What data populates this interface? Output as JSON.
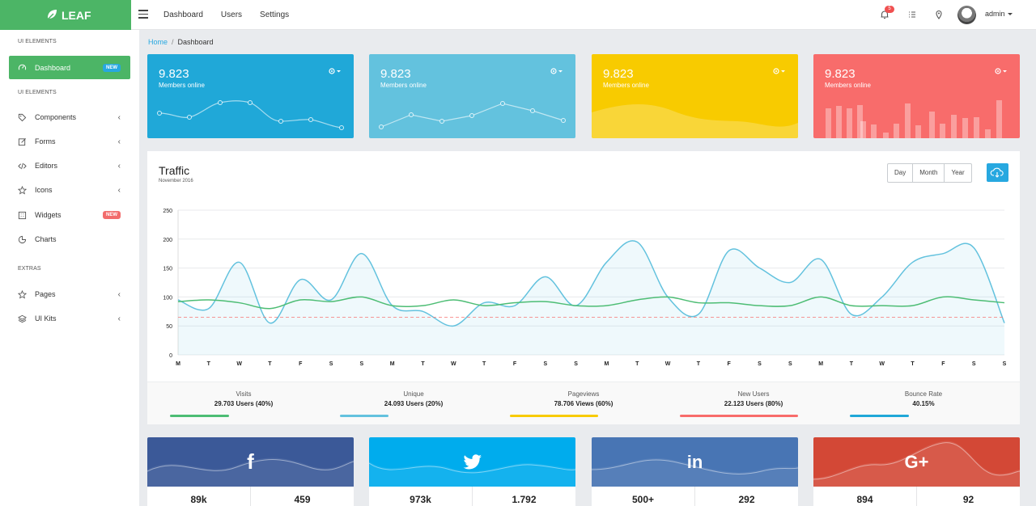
{
  "brand": {
    "name": "LEAF"
  },
  "topnav": {
    "items": [
      "Dashboard",
      "Users",
      "Settings"
    ]
  },
  "header": {
    "notifications_count": "5",
    "user_name": "admin"
  },
  "sidebar": {
    "sections": [
      "UI ELEMENTS",
      "UI ELEMENTS",
      "EXTRAS"
    ],
    "items": [
      {
        "label": "Dashboard",
        "icon": "speedometer-icon",
        "badge": "NEW"
      },
      {
        "label": "Components",
        "icon": "tag-icon"
      },
      {
        "label": "Forms",
        "icon": "edit-icon"
      },
      {
        "label": "Editors",
        "icon": "code-icon"
      },
      {
        "label": "Icons",
        "icon": "star-icon"
      },
      {
        "label": "Widgets",
        "icon": "grid-icon",
        "badge": "NEW"
      },
      {
        "label": "Charts",
        "icon": "pie-icon"
      },
      {
        "label": "Pages",
        "icon": "star-icon"
      },
      {
        "label": "UI Kits",
        "icon": "layers-icon"
      }
    ]
  },
  "breadcrumb": {
    "home": "Home",
    "sep": "/",
    "current": "Dashboard"
  },
  "stat_cards": [
    {
      "value": "9.823",
      "label": "Members online",
      "color": "#20a8d8"
    },
    {
      "value": "9.823",
      "label": "Members online",
      "color": "#63c2de"
    },
    {
      "value": "9.823",
      "label": "Members online",
      "color": "#f8cb00"
    },
    {
      "value": "9.823",
      "label": "Members online",
      "color": "#f86c6b"
    }
  ],
  "traffic": {
    "title": "Traffic",
    "subtitle": "November 2016",
    "ranges": [
      "Day",
      "Month",
      "Year"
    ]
  },
  "chart_data": {
    "type": "area",
    "title": "Traffic",
    "subtitle": "November 2016",
    "categories": [
      "M",
      "T",
      "W",
      "T",
      "F",
      "S",
      "S",
      "M",
      "T",
      "W",
      "T",
      "F",
      "S",
      "S",
      "M",
      "T",
      "W",
      "T",
      "F",
      "S",
      "S",
      "M",
      "T",
      "W",
      "T",
      "F",
      "S",
      "S"
    ],
    "yticks": [
      0,
      50,
      100,
      150,
      200,
      250
    ],
    "yticklabels": [
      "0",
      "50",
      "100",
      "150",
      "200",
      "250"
    ],
    "ylim": [
      0,
      250
    ],
    "grid": true,
    "series": [
      {
        "values": [
          95,
          80,
          160,
          55,
          130,
          95,
          175,
          85,
          75,
          50,
          90,
          85,
          135,
          85,
          160,
          195,
          100,
          70,
          180,
          150,
          125,
          165,
          70,
          100,
          160,
          175,
          185,
          55
        ],
        "color": "#63c2de",
        "fill": true
      },
      {
        "values": [
          92,
          95,
          90,
          80,
          95,
          92,
          100,
          85,
          85,
          95,
          85,
          90,
          92,
          85,
          85,
          95,
          100,
          90,
          90,
          85,
          85,
          100,
          85,
          85,
          85,
          100,
          95,
          90
        ],
        "color": "#4dbd74",
        "fill": false
      },
      {
        "values": [
          65,
          65,
          65,
          65,
          65,
          65,
          65,
          65,
          65,
          65,
          65,
          65,
          65,
          65,
          65,
          65,
          65,
          65,
          65,
          65,
          65,
          65,
          65,
          65,
          65,
          65,
          65,
          65
        ],
        "color": "#f86c6b",
        "dashed": true
      }
    ]
  },
  "kpis": [
    {
      "label": "Visits",
      "value": "29.703 Users (40%)",
      "color": "#4dbd74",
      "progress": 0.4
    },
    {
      "label": "Unique",
      "value": "24.093 Users (20%)",
      "color": "#63c2de",
      "progress": 0.2
    },
    {
      "label": "Pageviews",
      "value": "78.706 Views (60%)",
      "color": "#f8cb00",
      "progress": 0.6
    },
    {
      "label": "New Users",
      "value": "22.123 Users (80%)",
      "color": "#f86c6b",
      "progress": 0.8
    },
    {
      "label": "Bounce Rate",
      "value": "40.15%",
      "color": "#20a8d8",
      "progress": 0.4
    }
  ],
  "social": [
    {
      "network": "facebook",
      "icon": "facebook-icon",
      "glyph": "f",
      "color": "#3b5998",
      "left": "89k",
      "right": "459"
    },
    {
      "network": "twitter",
      "icon": "twitter-icon",
      "glyph": "🐦",
      "color": "#00aced",
      "left": "973k",
      "right": "1.792"
    },
    {
      "network": "linkedin",
      "icon": "linkedin-icon",
      "glyph": "in",
      "color": "#4875b4",
      "left": "500+",
      "right": "292"
    },
    {
      "network": "google-plus",
      "icon": "google-plus-icon",
      "glyph": "G+",
      "color": "#d34836",
      "left": "894",
      "right": "92"
    }
  ]
}
